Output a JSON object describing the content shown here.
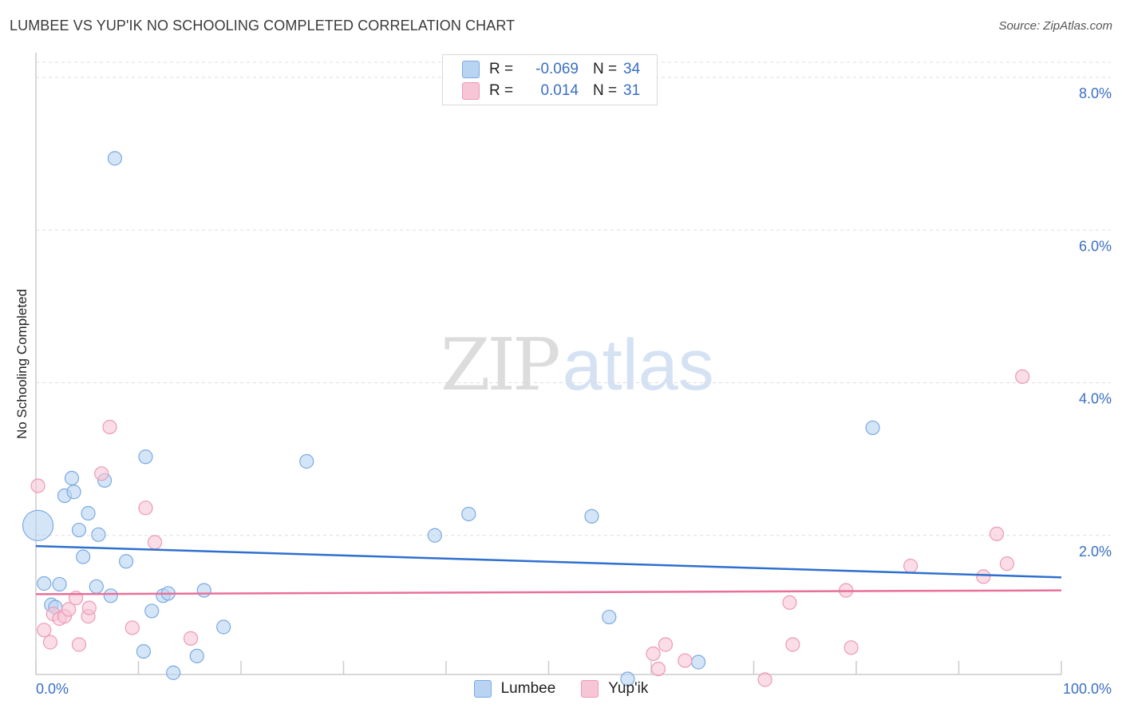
{
  "header": {
    "title": "LUMBEE VS YUP'IK NO SCHOOLING COMPLETED CORRELATION CHART",
    "source": "Source: ZipAtlas.com"
  },
  "watermark": {
    "zip": "ZIP",
    "atlas": "atlas"
  },
  "legend": {
    "rows": [
      {
        "r_label": "R =",
        "r_value": "-0.069",
        "n_label": "N =",
        "n_value": "34"
      },
      {
        "r_label": "R =",
        "r_value": "0.014",
        "n_label": "N =",
        "n_value": "31"
      }
    ]
  },
  "bottom_legend": {
    "lumbee": "Lumbee",
    "yupik": "Yup'ik"
  },
  "colors": {
    "lumbee_fill": "#b9d3f3",
    "lumbee_stroke": "#7aaae2",
    "lumbee_line": "#2f6fd0",
    "yupik_fill": "#f7c6d6",
    "yupik_stroke": "#ee9ab5",
    "yupik_line": "#e8709a",
    "tick_text": "#3a6fc4",
    "grid": "#dddddd"
  },
  "chart_data": {
    "type": "scatter",
    "title": "LUMBEE VS YUP'IK NO SCHOOLING COMPLETED CORRELATION CHART",
    "xlabel": "",
    "ylabel": "No Schooling Completed",
    "xlim": [
      0,
      100
    ],
    "ylim": [
      0,
      8.0
    ],
    "x_tick_labels": [
      "0.0%",
      "100.0%"
    ],
    "y_ticks": [
      2.0,
      4.0,
      6.0,
      8.0
    ],
    "y_tick_labels": [
      "2.0%",
      "4.0%",
      "6.0%",
      "8.0%"
    ],
    "legend_position": "top-center",
    "grid": true,
    "series": [
      {
        "name": "Lumbee",
        "R": -0.069,
        "N": 34,
        "trend": {
          "x": [
            0,
            100
          ],
          "y": [
            1.86,
            1.45
          ]
        },
        "points": [
          {
            "x": 0.2,
            "y": 2.13,
            "big": true
          },
          {
            "x": 0.8,
            "y": 1.37
          },
          {
            "x": 1.5,
            "y": 1.09
          },
          {
            "x": 1.9,
            "y": 1.06
          },
          {
            "x": 2.3,
            "y": 1.36
          },
          {
            "x": 2.8,
            "y": 2.52
          },
          {
            "x": 3.5,
            "y": 2.75
          },
          {
            "x": 3.7,
            "y": 2.57
          },
          {
            "x": 4.2,
            "y": 2.07
          },
          {
            "x": 4.6,
            "y": 1.72
          },
          {
            "x": 5.1,
            "y": 2.29
          },
          {
            "x": 5.9,
            "y": 1.33
          },
          {
            "x": 6.1,
            "y": 2.01
          },
          {
            "x": 6.7,
            "y": 2.72
          },
          {
            "x": 7.3,
            "y": 1.21
          },
          {
            "x": 7.7,
            "y": 6.94
          },
          {
            "x": 8.8,
            "y": 1.66
          },
          {
            "x": 10.5,
            "y": 0.48
          },
          {
            "x": 10.7,
            "y": 3.03
          },
          {
            "x": 11.3,
            "y": 1.01
          },
          {
            "x": 12.4,
            "y": 1.21
          },
          {
            "x": 12.9,
            "y": 1.24
          },
          {
            "x": 13.4,
            "y": 0.2
          },
          {
            "x": 15.7,
            "y": 0.42
          },
          {
            "x": 16.4,
            "y": 1.28
          },
          {
            "x": 18.3,
            "y": 0.8
          },
          {
            "x": 26.4,
            "y": 2.97
          },
          {
            "x": 38.9,
            "y": 2.0
          },
          {
            "x": 42.2,
            "y": 2.28
          },
          {
            "x": 54.2,
            "y": 2.25
          },
          {
            "x": 55.9,
            "y": 0.93
          },
          {
            "x": 57.7,
            "y": 0.12
          },
          {
            "x": 64.6,
            "y": 0.34
          },
          {
            "x": 81.6,
            "y": 3.41
          }
        ]
      },
      {
        "name": "Yup'ik",
        "R": 0.014,
        "N": 31,
        "trend": {
          "x": [
            0,
            100
          ],
          "y": [
            1.23,
            1.28
          ]
        },
        "points": [
          {
            "x": 0.2,
            "y": 2.65
          },
          {
            "x": 0.8,
            "y": 0.76
          },
          {
            "x": 1.4,
            "y": 0.6
          },
          {
            "x": 1.7,
            "y": 0.97
          },
          {
            "x": 2.3,
            "y": 0.91
          },
          {
            "x": 2.8,
            "y": 0.94
          },
          {
            "x": 3.2,
            "y": 1.03
          },
          {
            "x": 3.9,
            "y": 1.18
          },
          {
            "x": 4.2,
            "y": 0.57
          },
          {
            "x": 5.1,
            "y": 0.94
          },
          {
            "x": 5.2,
            "y": 1.05
          },
          {
            "x": 6.4,
            "y": 2.81
          },
          {
            "x": 7.2,
            "y": 3.42
          },
          {
            "x": 9.4,
            "y": 0.79
          },
          {
            "x": 10.7,
            "y": 2.36
          },
          {
            "x": 11.6,
            "y": 1.91
          },
          {
            "x": 15.1,
            "y": 0.65
          },
          {
            "x": 60.2,
            "y": 0.45
          },
          {
            "x": 60.7,
            "y": 0.25
          },
          {
            "x": 61.4,
            "y": 0.57
          },
          {
            "x": 63.3,
            "y": 0.36
          },
          {
            "x": 71.1,
            "y": 0.11
          },
          {
            "x": 73.5,
            "y": 1.12
          },
          {
            "x": 73.8,
            "y": 0.57
          },
          {
            "x": 79.0,
            "y": 1.28
          },
          {
            "x": 79.5,
            "y": 0.53
          },
          {
            "x": 85.3,
            "y": 1.6
          },
          {
            "x": 92.4,
            "y": 1.46
          },
          {
            "x": 93.7,
            "y": 2.02
          },
          {
            "x": 94.7,
            "y": 1.63
          },
          {
            "x": 96.2,
            "y": 4.08
          }
        ]
      }
    ]
  }
}
